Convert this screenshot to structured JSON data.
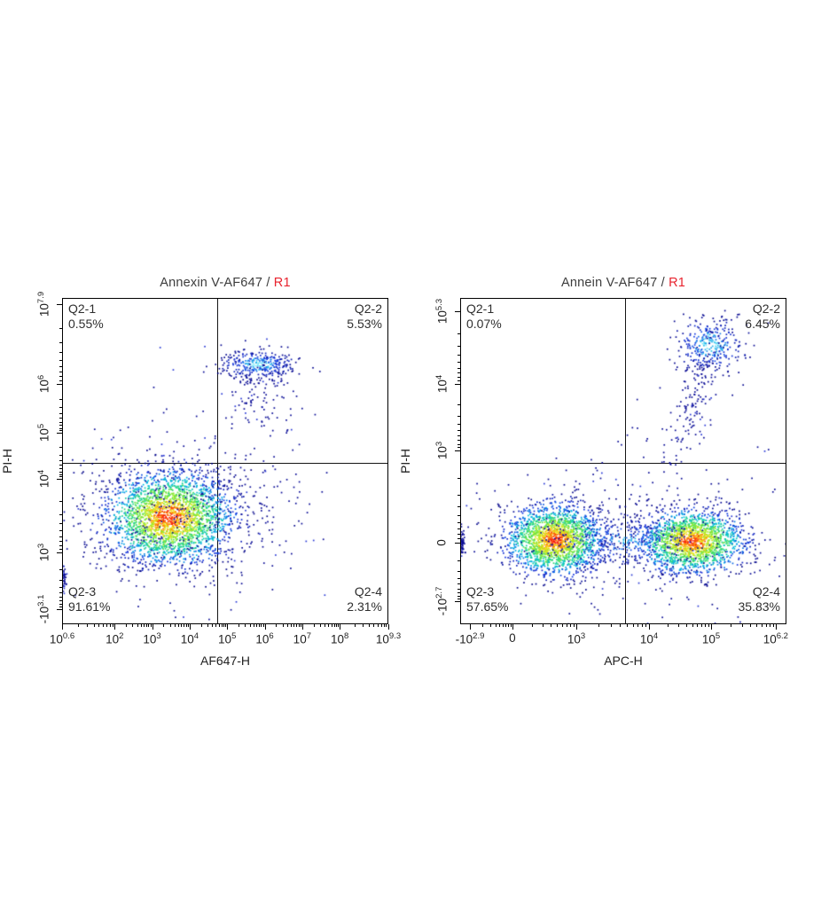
{
  "figure": {
    "background": "#ffffff",
    "description": "Two flow cytometry pseudocolor density dot plots with quadrant gates"
  },
  "colors": {
    "axis_line": "#000000",
    "title_text": "#3d3d3d",
    "gate_tag_red": "#e8232e",
    "quadrant_label_text": "#2e2e2e",
    "tick_label_text": "#1f1f1f",
    "dot_outer_blue": "#0a0c96",
    "dot_core_red": "#f82408"
  },
  "chart_data": [
    {
      "type": "scatter",
      "flavor": "flow-cytometry-density",
      "title": "Annexin V-AF647 / ",
      "gate": "R1",
      "xlabel": "AF647-H",
      "ylabel": "PI-H",
      "x_axis": {
        "scale": "log",
        "min": "10^0.6",
        "max": "10^9.3"
      },
      "y_axis": {
        "scale": "biexponential",
        "min": "-10^3.1",
        "max": "10^7.9"
      },
      "x_ticks": [
        {
          "m": "10",
          "e": "0.6",
          "p": 0.0
        },
        {
          "m": "10",
          "e": "2",
          "p": 0.161
        },
        {
          "m": "10",
          "e": "3",
          "p": 0.276
        },
        {
          "m": "10",
          "e": "4",
          "p": 0.391
        },
        {
          "m": "10",
          "e": "5",
          "p": 0.506
        },
        {
          "m": "10",
          "e": "6",
          "p": 0.621
        },
        {
          "m": "10",
          "e": "7",
          "p": 0.736
        },
        {
          "m": "10",
          "e": "8",
          "p": 0.851
        },
        {
          "m": "10",
          "e": "9.3",
          "p": 1.0
        }
      ],
      "y_ticks": [
        {
          "m": "10",
          "e": "7.9",
          "p": 0.018
        },
        {
          "m": "10",
          "e": "6",
          "p": 0.264
        },
        {
          "m": "10",
          "e": "5",
          "p": 0.413
        },
        {
          "m": "10",
          "e": "4",
          "p": 0.554
        },
        {
          "m": "10",
          "e": "3",
          "p": 0.78
        },
        {
          "m": "-10",
          "e": "3.1",
          "p": 0.954
        }
      ],
      "quadrant_gate": {
        "x_frac": 0.4755,
        "y_frac": 0.505,
        "labels": [
          {
            "name": "Q2-1",
            "value": "0.55%"
          },
          {
            "name": "Q2-2",
            "value": "5.53%"
          },
          {
            "name": "Q2-3",
            "value": "91.61%"
          },
          {
            "name": "Q2-4",
            "value": "2.31%"
          }
        ]
      },
      "populations": [
        {
          "desc": "main double-negative cell cluster",
          "cx": 0.326,
          "cy": 0.671,
          "sx": 0.1,
          "sy": 0.073,
          "n": 2600,
          "style": "density"
        },
        {
          "desc": "sparse halo around main cluster",
          "cx": 0.33,
          "cy": 0.675,
          "sx": 0.165,
          "sy": 0.125,
          "n": 340,
          "style": "sparse"
        },
        {
          "desc": "PI+/AnnexinV+ upper cluster",
          "cx": 0.598,
          "cy": 0.201,
          "sx": 0.057,
          "sy": 0.021,
          "n": 310,
          "style": "cool"
        },
        {
          "desc": "tail under upper cluster",
          "cx": 0.59,
          "cy": 0.285,
          "sx": 0.05,
          "sy": 0.065,
          "n": 120,
          "style": "sparse"
        },
        {
          "desc": "strays right of main cluster",
          "cx": 0.56,
          "cy": 0.62,
          "sx": 0.11,
          "sy": 0.1,
          "n": 90,
          "style": "sparse"
        },
        {
          "desc": "wide sparse strays",
          "cx": 0.42,
          "cy": 0.42,
          "sx": 0.26,
          "sy": 0.16,
          "n": 36,
          "style": "sparse"
        },
        {
          "desc": "events piled on y axis",
          "cx": 0.004,
          "cy": 0.859,
          "sx": 0.004,
          "sy": 0.018,
          "n": 45,
          "style": "sparse"
        }
      ]
    },
    {
      "type": "scatter",
      "flavor": "flow-cytometry-density",
      "title": "Annein V-AF647 / ",
      "gate": "R1",
      "xlabel": "APC-H",
      "ylabel": "PI-H",
      "x_axis": {
        "scale": "biexponential",
        "min": "-10^2.9",
        "max": "10^6.2"
      },
      "y_axis": {
        "scale": "biexponential",
        "min": "-10^2.7",
        "max": "10^5.3"
      },
      "x_ticks": [
        {
          "m": "-10",
          "e": "2.9",
          "p": 0.03
        },
        {
          "m": "0",
          "e": "",
          "p": 0.16
        },
        {
          "m": "10",
          "e": "3",
          "p": 0.356
        },
        {
          "m": "10",
          "e": "4",
          "p": 0.579
        },
        {
          "m": "10",
          "e": "5",
          "p": 0.769
        },
        {
          "m": "10",
          "e": "6.2",
          "p": 0.967
        }
      ],
      "y_ticks": [
        {
          "m": "10",
          "e": "5.3",
          "p": 0.04
        },
        {
          "m": "10",
          "e": "4",
          "p": 0.264
        },
        {
          "m": "10",
          "e": "3",
          "p": 0.467
        },
        {
          "m": "0",
          "e": "",
          "p": 0.75
        },
        {
          "m": "-10",
          "e": "2.7",
          "p": 0.93
        }
      ],
      "quadrant_gate": {
        "x_frac": 0.505,
        "y_frac": 0.505,
        "labels": [
          {
            "name": "Q2-1",
            "value": "0.07%"
          },
          {
            "name": "Q2-2",
            "value": "6.45%"
          },
          {
            "name": "Q2-3",
            "value": "57.65%"
          },
          {
            "name": "Q2-4",
            "value": "35.83%"
          }
        ]
      },
      "populations": [
        {
          "desc": "APC-negative bottom-left cluster",
          "cx": 0.288,
          "cy": 0.739,
          "sx": 0.077,
          "sy": 0.054,
          "n": 1950,
          "style": "density"
        },
        {
          "desc": "APC-positive bottom-right cluster",
          "cx": 0.709,
          "cy": 0.745,
          "sx": 0.082,
          "sy": 0.049,
          "n": 1750,
          "style": "density"
        },
        {
          "desc": "bridge between bottom clusters",
          "cx": 0.5,
          "cy": 0.742,
          "sx": 0.13,
          "sy": 0.045,
          "n": 330,
          "style": "cool",
          "dim": 0.8
        },
        {
          "desc": "double-positive upper cluster",
          "cx": 0.764,
          "cy": 0.141,
          "sx": 0.055,
          "sy": 0.042,
          "n": 300,
          "style": "cool"
        },
        {
          "desc": "diagonal tail from upper cluster",
          "cx": 0.72,
          "cy": 0.3,
          "sx": 0.045,
          "sy": 0.115,
          "n": 170,
          "style": "sparse",
          "corr": -0.75
        },
        {
          "desc": "sparse halo band along bottom",
          "cx": 0.5,
          "cy": 0.72,
          "sx": 0.3,
          "sy": 0.12,
          "n": 260,
          "style": "sparse"
        },
        {
          "desc": "events piled on y axis",
          "cx": 0.003,
          "cy": 0.75,
          "sx": 0.004,
          "sy": 0.022,
          "n": 55,
          "style": "sparse"
        },
        {
          "desc": "mid-plot strays",
          "cx": 0.62,
          "cy": 0.45,
          "sx": 0.14,
          "sy": 0.1,
          "n": 22,
          "style": "sparse"
        }
      ]
    }
  ]
}
